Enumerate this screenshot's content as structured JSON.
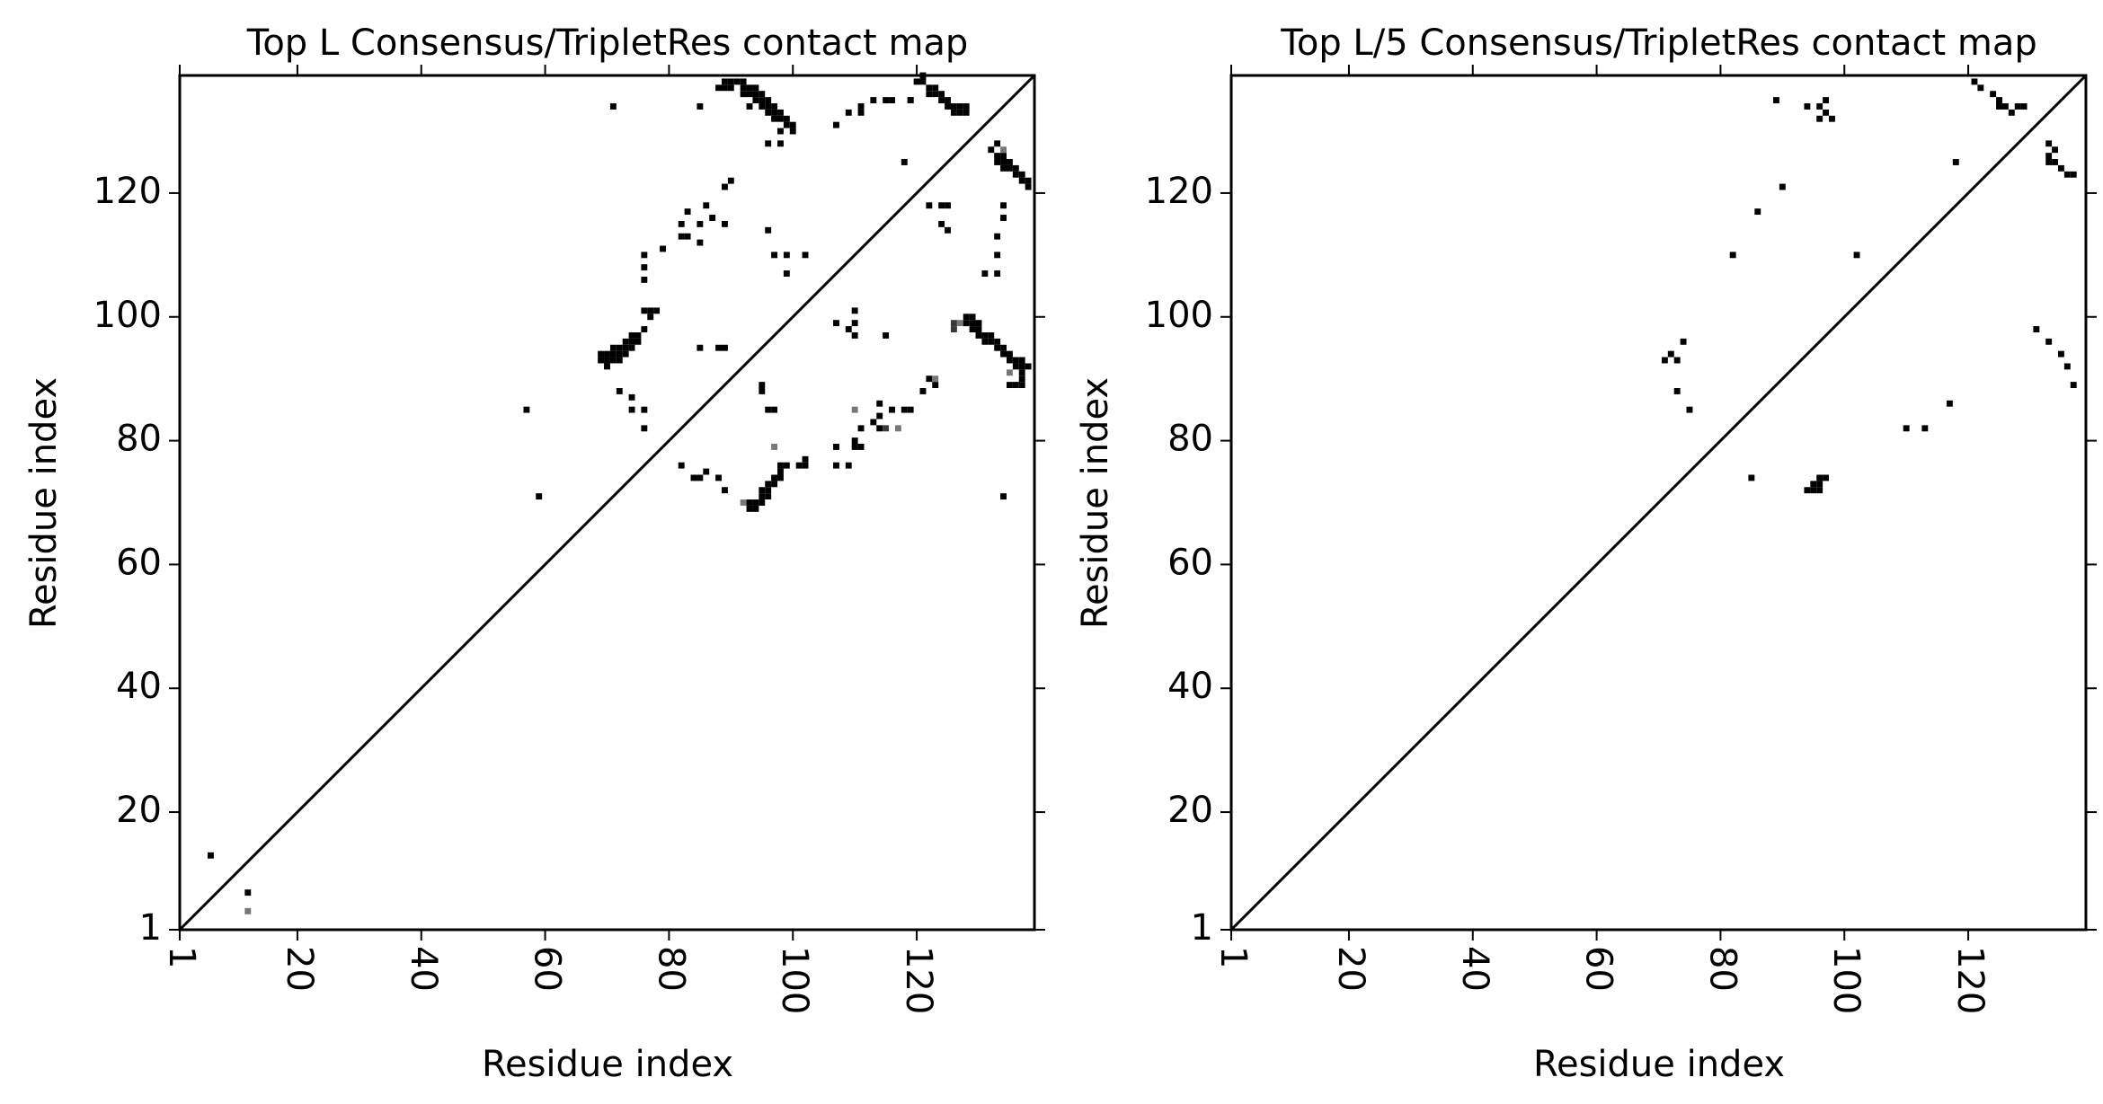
{
  "chart_data": [
    {
      "type": "heatmap",
      "title": "Top L Consensus/TripletRes contact map",
      "xlabel": "Residue index",
      "ylabel": "Residue index",
      "xlim": [
        1,
        139
      ],
      "ylim": [
        1,
        139
      ],
      "xticks": [
        "1",
        "20",
        "40",
        "60",
        "80",
        "100",
        "120"
      ],
      "yticks": [
        "1",
        "20",
        "40",
        "60",
        "80",
        "100",
        "120"
      ],
      "xtick_values": [
        1,
        20,
        40,
        60,
        80,
        100,
        120
      ],
      "ytick_values": [
        1,
        20,
        40,
        60,
        80,
        100,
        120
      ],
      "diagonal": true,
      "colors": {
        "strong": "#000000",
        "medium": "#3a3a3a",
        "weak": "#777777"
      },
      "upper_contacts": [
        [
          6,
          13,
          1
        ],
        [
          12,
          7,
          1
        ],
        [
          12,
          4,
          0.6
        ],
        [
          57,
          85,
          1
        ],
        [
          59,
          71,
          1
        ],
        [
          71,
          134,
          1
        ],
        [
          69,
          93,
          1
        ],
        [
          69,
          94,
          1
        ],
        [
          70,
          92,
          1
        ],
        [
          70,
          93,
          1
        ],
        [
          70,
          94,
          1
        ],
        [
          71,
          93,
          1
        ],
        [
          71,
          94,
          1
        ],
        [
          71,
          95,
          1
        ],
        [
          72,
          93,
          1
        ],
        [
          72,
          94,
          1
        ],
        [
          72,
          95,
          1
        ],
        [
          73,
          94,
          1
        ],
        [
          73,
          95,
          1
        ],
        [
          73,
          96,
          1
        ],
        [
          74,
          95,
          1
        ],
        [
          74,
          96,
          1
        ],
        [
          74,
          97,
          1
        ],
        [
          75,
          96,
          1
        ],
        [
          75,
          97,
          1
        ],
        [
          76,
          98,
          1
        ],
        [
          77,
          100,
          1
        ],
        [
          77,
          101,
          1
        ],
        [
          76,
          101,
          1
        ],
        [
          78,
          101,
          1
        ],
        [
          72,
          88,
          1
        ],
        [
          74,
          87,
          1
        ],
        [
          74,
          85,
          1
        ],
        [
          76,
          85,
          1
        ],
        [
          76,
          82,
          1
        ],
        [
          76,
          106,
          1
        ],
        [
          76,
          108,
          1
        ],
        [
          76,
          110,
          1
        ],
        [
          79,
          111,
          1
        ],
        [
          82,
          113,
          1
        ],
        [
          83,
          113,
          1
        ],
        [
          82,
          115,
          1
        ],
        [
          83,
          117,
          1
        ],
        [
          85,
          112,
          1
        ],
        [
          85,
          115,
          1
        ],
        [
          86,
          118,
          1
        ],
        [
          87,
          116,
          1
        ],
        [
          89,
          121,
          1
        ],
        [
          90,
          122,
          1
        ],
        [
          89,
          115,
          1
        ],
        [
          88,
          95,
          1
        ],
        [
          89,
          95,
          1
        ],
        [
          85,
          95,
          1
        ],
        [
          85,
          134,
          1
        ],
        [
          88,
          137,
          1
        ],
        [
          89,
          137,
          1
        ],
        [
          89,
          138,
          1
        ],
        [
          90,
          137,
          1
        ],
        [
          90,
          138,
          1
        ],
        [
          91,
          138,
          1
        ],
        [
          92,
          137,
          1
        ],
        [
          92,
          138,
          1
        ],
        [
          93,
          137,
          1
        ],
        [
          93,
          136,
          1
        ],
        [
          94,
          136,
          1
        ],
        [
          94,
          137,
          1
        ],
        [
          94,
          135,
          1
        ],
        [
          95,
          136,
          1
        ],
        [
          95,
          135,
          1
        ],
        [
          95,
          134,
          1
        ],
        [
          96,
          135,
          1
        ],
        [
          96,
          134,
          1
        ],
        [
          96,
          133,
          1
        ],
        [
          97,
          134,
          1
        ],
        [
          97,
          133,
          1
        ],
        [
          97,
          132,
          1
        ],
        [
          98,
          133,
          1
        ],
        [
          98,
          132,
          1
        ],
        [
          99,
          132,
          1
        ],
        [
          99,
          131,
          1
        ],
        [
          100,
          131,
          1
        ],
        [
          100,
          130,
          1
        ],
        [
          98,
          130,
          1
        ],
        [
          96,
          128,
          1
        ],
        [
          98,
          128,
          1
        ],
        [
          93,
          134,
          1
        ],
        [
          92,
          136,
          1
        ],
        [
          96,
          114,
          1
        ],
        [
          97,
          110,
          1
        ],
        [
          99,
          107,
          1
        ],
        [
          99,
          110,
          1
        ],
        [
          102,
          110,
          1
        ],
        [
          107,
          131,
          1
        ],
        [
          109,
          133,
          1
        ],
        [
          111,
          133,
          1
        ],
        [
          111,
          134,
          1
        ],
        [
          113,
          135,
          1
        ],
        [
          115,
          135,
          1
        ],
        [
          116,
          135,
          1
        ],
        [
          119,
          135,
          1
        ],
        [
          118,
          125,
          1
        ],
        [
          119,
          135,
          1
        ],
        [
          120,
          138,
          1
        ],
        [
          121,
          138,
          1
        ],
        [
          122,
          137,
          1
        ],
        [
          122,
          136,
          1
        ],
        [
          123,
          137,
          1
        ],
        [
          123,
          136,
          1
        ],
        [
          124,
          136,
          1
        ],
        [
          124,
          135,
          1
        ],
        [
          125,
          135,
          1
        ],
        [
          125,
          134,
          1
        ],
        [
          126,
          134,
          1
        ],
        [
          126,
          133,
          1
        ],
        [
          127,
          134,
          1
        ],
        [
          127,
          133,
          1
        ],
        [
          128,
          133,
          1
        ],
        [
          128,
          134,
          1
        ],
        [
          121,
          139,
          1
        ],
        [
          124,
          118,
          1
        ],
        [
          125,
          118,
          1
        ],
        [
          125,
          114,
          1
        ]
      ],
      "lower_contacts": [
        [
          93,
          70,
          1
        ],
        [
          93,
          69,
          1
        ],
        [
          94,
          69,
          1
        ],
        [
          94,
          70,
          1
        ],
        [
          95,
          70,
          1
        ],
        [
          95,
          71,
          1
        ],
        [
          95,
          72,
          1
        ],
        [
          96,
          71,
          1
        ],
        [
          96,
          72,
          1
        ],
        [
          96,
          73,
          1
        ],
        [
          97,
          73,
          1
        ],
        [
          97,
          74,
          1
        ],
        [
          98,
          74,
          1
        ],
        [
          98,
          75,
          1
        ],
        [
          98,
          76,
          1
        ],
        [
          99,
          76,
          1
        ],
        [
          92,
          70,
          0.6
        ],
        [
          82,
          76,
          1
        ],
        [
          84,
          74,
          1
        ],
        [
          85,
          74,
          1
        ],
        [
          86,
          75,
          1
        ],
        [
          89,
          72,
          1
        ],
        [
          88,
          74,
          1
        ],
        [
          95,
          89,
          1
        ],
        [
          95,
          88,
          1
        ],
        [
          96,
          85,
          1
        ],
        [
          97,
          85,
          1
        ],
        [
          97,
          79,
          0.5
        ],
        [
          101,
          76,
          1
        ],
        [
          102,
          77,
          1
        ],
        [
          102,
          76,
          1
        ],
        [
          107,
          76,
          1
        ],
        [
          107,
          79,
          1
        ],
        [
          109,
          76,
          1
        ],
        [
          110,
          79,
          1
        ],
        [
          111,
          79,
          1
        ],
        [
          110,
          80,
          1
        ],
        [
          111,
          82,
          1
        ],
        [
          113,
          83,
          1
        ],
        [
          114,
          82,
          1
        ],
        [
          114,
          84,
          1
        ],
        [
          114,
          86,
          1
        ],
        [
          116,
          85,
          1
        ],
        [
          115,
          82,
          0.7
        ],
        [
          117,
          82,
          0.6
        ],
        [
          118,
          85,
          1
        ],
        [
          119,
          85,
          1
        ],
        [
          121,
          88,
          1
        ],
        [
          122,
          90,
          1
        ],
        [
          123,
          89,
          1
        ],
        [
          123,
          90,
          0.6
        ],
        [
          107,
          99,
          1
        ],
        [
          109,
          98,
          1
        ],
        [
          110,
          101,
          1
        ],
        [
          110,
          99,
          1
        ],
        [
          110,
          97,
          1
        ],
        [
          115,
          97,
          1
        ],
        [
          110,
          85,
          0.6
        ],
        [
          126,
          99,
          0.7
        ],
        [
          126,
          98,
          0.7
        ],
        [
          127,
          99,
          0.6
        ],
        [
          128,
          100,
          1
        ],
        [
          128,
          99,
          1
        ],
        [
          129,
          100,
          1
        ],
        [
          129,
          99,
          1
        ],
        [
          129,
          98,
          1
        ],
        [
          130,
          99,
          1
        ],
        [
          130,
          98,
          1
        ],
        [
          130,
          97,
          1
        ],
        [
          131,
          97,
          1
        ],
        [
          131,
          96,
          1
        ],
        [
          132,
          97,
          1
        ],
        [
          132,
          96,
          1
        ],
        [
          133,
          96,
          1
        ],
        [
          133,
          95,
          1
        ],
        [
          134,
          95,
          1
        ],
        [
          134,
          94,
          1
        ],
        [
          135,
          94,
          1
        ],
        [
          135,
          93,
          1
        ],
        [
          136,
          93,
          1
        ],
        [
          136,
          92,
          1
        ],
        [
          137,
          93,
          1
        ],
        [
          137,
          92,
          1
        ],
        [
          137,
          91,
          1
        ],
        [
          137,
          90,
          1
        ],
        [
          137,
          89,
          1
        ],
        [
          136,
          89,
          1
        ],
        [
          135,
          89,
          1
        ],
        [
          138,
          92,
          1
        ],
        [
          135,
          91,
          0.6
        ],
        [
          132,
          127,
          1
        ],
        [
          133,
          126,
          1
        ],
        [
          133,
          125,
          1
        ],
        [
          134,
          126,
          1
        ],
        [
          134,
          125,
          1
        ],
        [
          134,
          124,
          1
        ],
        [
          135,
          125,
          1
        ],
        [
          135,
          124,
          1
        ],
        [
          136,
          124,
          1
        ],
        [
          136,
          123,
          1
        ],
        [
          137,
          123,
          1
        ],
        [
          137,
          122,
          1
        ],
        [
          138,
          122,
          1
        ],
        [
          138,
          121,
          1
        ],
        [
          133,
          128,
          1
        ],
        [
          134,
          127,
          0.6
        ],
        [
          134,
          118,
          1
        ],
        [
          134,
          116,
          1
        ],
        [
          133,
          113,
          1
        ],
        [
          133,
          110,
          1
        ],
        [
          131,
          107,
          1
        ],
        [
          133,
          107,
          1
        ],
        [
          134,
          71,
          1
        ],
        [
          122,
          118,
          1
        ],
        [
          124,
          115,
          1
        ]
      ]
    },
    {
      "type": "heatmap",
      "title": "Top L/5 Consensus/TripletRes contact map",
      "xlabel": "Residue index",
      "ylabel": "Residue index",
      "xlim": [
        1,
        139
      ],
      "ylim": [
        1,
        139
      ],
      "xticks": [
        "1",
        "20",
        "40",
        "60",
        "80",
        "100",
        "120"
      ],
      "yticks": [
        "1",
        "20",
        "40",
        "60",
        "80",
        "100",
        "120"
      ],
      "xtick_values": [
        1,
        20,
        40,
        60,
        80,
        100,
        120
      ],
      "ytick_values": [
        1,
        20,
        40,
        60,
        80,
        100,
        120
      ],
      "diagonal": true,
      "colors": {
        "strong": "#000000",
        "medium": "#3a3a3a",
        "weak": "#777777"
      },
      "upper_contacts": [
        [
          71,
          93,
          1
        ],
        [
          72,
          94,
          1
        ],
        [
          73,
          93,
          1
        ],
        [
          74,
          96,
          1
        ],
        [
          73,
          88,
          1
        ],
        [
          75,
          85,
          1
        ],
        [
          82,
          110,
          1
        ],
        [
          86,
          117,
          1
        ],
        [
          90,
          121,
          1
        ],
        [
          89,
          135,
          1
        ],
        [
          94,
          134,
          1
        ],
        [
          96,
          134,
          1
        ],
        [
          96,
          132,
          1
        ],
        [
          97,
          133,
          1
        ],
        [
          97,
          135,
          1
        ],
        [
          98,
          132,
          1
        ],
        [
          102,
          110,
          1
        ],
        [
          118,
          125,
          1
        ],
        [
          121,
          138,
          1
        ],
        [
          122,
          137,
          1
        ],
        [
          124,
          136,
          1
        ],
        [
          125,
          135,
          1
        ],
        [
          126,
          134,
          1
        ],
        [
          127,
          133,
          1
        ],
        [
          128,
          134,
          1
        ],
        [
          129,
          134,
          1
        ],
        [
          125,
          134,
          1
        ]
      ],
      "lower_contacts": [
        [
          85,
          74,
          1
        ],
        [
          94,
          72,
          1
        ],
        [
          95,
          72,
          1
        ],
        [
          95,
          73,
          1
        ],
        [
          96,
          72,
          1
        ],
        [
          96,
          73,
          1
        ],
        [
          96,
          74,
          1
        ],
        [
          97,
          74,
          1
        ],
        [
          110,
          82,
          1
        ],
        [
          113,
          82,
          1
        ],
        [
          117,
          86,
          1
        ],
        [
          131,
          98,
          1
        ],
        [
          133,
          96,
          1
        ],
        [
          135,
          94,
          1
        ],
        [
          136,
          92,
          1
        ],
        [
          137,
          89,
          1
        ],
        [
          133,
          126,
          1
        ],
        [
          133,
          125,
          1
        ],
        [
          134,
          127,
          1
        ],
        [
          134,
          125,
          1
        ],
        [
          135,
          124,
          1
        ],
        [
          136,
          123,
          1
        ],
        [
          137,
          123,
          1
        ],
        [
          133,
          128,
          1
        ]
      ]
    }
  ]
}
